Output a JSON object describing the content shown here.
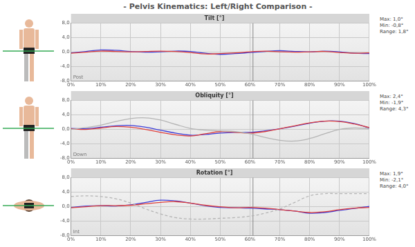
{
  "title": "- Pelvis Kinematics: Left/Right Comparison -",
  "chart_data": [
    {
      "type": "line",
      "title": "Tilt [°]",
      "annotation": "Post",
      "stats": [
        "Max: 1,0°",
        "Min: -0,8°",
        "Range: 1,8°"
      ],
      "x": [
        0,
        5,
        10,
        15,
        20,
        25,
        30,
        35,
        40,
        45,
        50,
        55,
        60,
        65,
        70,
        75,
        80,
        85,
        90,
        95,
        100
      ],
      "xlim": [
        0,
        100
      ],
      "xticks": [
        {
          "value": 0,
          "label": "0%"
        },
        {
          "value": 10,
          "label": "10%"
        },
        {
          "value": 20,
          "label": "20%"
        },
        {
          "value": 30,
          "label": "30%"
        },
        {
          "value": 40,
          "label": "40%"
        },
        {
          "value": 50,
          "label": "50%"
        },
        {
          "value": 60,
          "label": "60%"
        },
        {
          "value": 70,
          "label": "70%"
        },
        {
          "value": 80,
          "label": "80%"
        },
        {
          "value": 90,
          "label": "90%"
        },
        {
          "value": 100,
          "label": "100%"
        }
      ],
      "ylim": [
        -8,
        8
      ],
      "yticks": [
        {
          "value": -8,
          "label": "-8,0"
        },
        {
          "value": -4,
          "label": "-4,0"
        },
        {
          "value": 0,
          "label": "0,0"
        },
        {
          "value": 4,
          "label": "4,0"
        },
        {
          "value": 8,
          "label": "8,0"
        }
      ],
      "grid": true,
      "event_x": 61,
      "series": [
        {
          "color": "#e0403c",
          "line_style": "solid",
          "values": [
            -0.3,
            0,
            0.3,
            0.2,
            0.1,
            0.2,
            0.3,
            0.2,
            -0.1,
            -0.5,
            -0.4,
            -0.2,
            0.1,
            0.3,
            0.1,
            0,
            0.1,
            0.2,
            -0.1,
            -0.3,
            -0.2
          ]
        },
        {
          "color": "#3c3cd8",
          "line_style": "solid",
          "values": [
            -0.2,
            0.2,
            0.6,
            0.5,
            0.2,
            0,
            0.1,
            0.3,
            0.2,
            -0.3,
            -0.6,
            -0.4,
            -0.1,
            0.2,
            0.4,
            0.2,
            0.1,
            0.3,
            0.1,
            -0.3,
            -0.4
          ]
        }
      ]
    },
    {
      "type": "line",
      "title": "Obliquity [°]",
      "annotation": "Down",
      "stats": [
        "Max: 2,4°",
        "Min: -1,9°",
        "Range: 4,3°"
      ],
      "x": [
        0,
        5,
        10,
        15,
        20,
        25,
        30,
        35,
        40,
        45,
        50,
        55,
        60,
        65,
        70,
        75,
        80,
        85,
        90,
        95,
        100
      ],
      "xlim": [
        0,
        100
      ],
      "xticks": [
        {
          "value": 0,
          "label": "0%"
        },
        {
          "value": 10,
          "label": "10%"
        },
        {
          "value": 20,
          "label": "20%"
        },
        {
          "value": 30,
          "label": "30%"
        },
        {
          "value": 40,
          "label": "40%"
        },
        {
          "value": 50,
          "label": "50%"
        },
        {
          "value": 60,
          "label": "60%"
        },
        {
          "value": 70,
          "label": "70%"
        },
        {
          "value": 80,
          "label": "80%"
        },
        {
          "value": 90,
          "label": "90%"
        },
        {
          "value": 100,
          "label": "100%"
        }
      ],
      "ylim": [
        -8,
        8
      ],
      "yticks": [
        {
          "value": -8,
          "label": "-8,0"
        },
        {
          "value": -4,
          "label": "-4,0"
        },
        {
          "value": 0,
          "label": "0,0"
        },
        {
          "value": 4,
          "label": "4,0"
        },
        {
          "value": 8,
          "label": "8,0"
        }
      ],
      "grid": true,
      "event_x": 61,
      "series": [
        {
          "color": "#b4b4b4",
          "line_style": "solid",
          "values": [
            0,
            0.5,
            1.2,
            2.2,
            3.0,
            3.2,
            2.6,
            1.4,
            0.3,
            -0.2,
            -0.4,
            -0.6,
            -1.2,
            -2.2,
            -3.0,
            -3.2,
            -2.5,
            -1.2,
            0,
            0.4,
            0.2
          ]
        },
        {
          "color": "#e0403c",
          "line_style": "solid",
          "values": [
            0.2,
            0,
            0.4,
            0.8,
            0.6,
            0,
            -0.8,
            -1.5,
            -1.8,
            -1.2,
            -0.6,
            -0.8,
            -1,
            -0.6,
            0.2,
            1.0,
            1.8,
            2.3,
            2.2,
            1.5,
            0.5
          ]
        },
        {
          "color": "#3c3cd8",
          "line_style": "solid",
          "values": [
            0.3,
            0.2,
            0.6,
            1.0,
            1.1,
            0.6,
            -0.2,
            -1.0,
            -1.6,
            -1.4,
            -1.0,
            -0.8,
            -0.8,
            -0.4,
            0.2,
            0.9,
            1.7,
            2.3,
            2.3,
            1.6,
            0.4
          ]
        }
      ]
    },
    {
      "type": "line",
      "title": "Rotation [°]",
      "annotation": "Int",
      "stats": [
        "Max: 1,9°",
        "Min: -2,1°",
        "Range: 4,0°"
      ],
      "x": [
        0,
        5,
        10,
        15,
        20,
        25,
        30,
        35,
        40,
        45,
        50,
        55,
        60,
        65,
        70,
        75,
        80,
        85,
        90,
        95,
        100
      ],
      "xlim": [
        0,
        100
      ],
      "xticks": [
        {
          "value": 0,
          "label": "0%"
        },
        {
          "value": 10,
          "label": "10%"
        },
        {
          "value": 20,
          "label": "20%"
        },
        {
          "value": 30,
          "label": "30%"
        },
        {
          "value": 40,
          "label": "40%"
        },
        {
          "value": 50,
          "label": "50%"
        },
        {
          "value": 60,
          "label": "60%"
        },
        {
          "value": 70,
          "label": "70%"
        },
        {
          "value": 80,
          "label": "80%"
        },
        {
          "value": 90,
          "label": "90%"
        },
        {
          "value": 100,
          "label": "100%"
        }
      ],
      "ylim": [
        -8,
        8
      ],
      "yticks": [
        {
          "value": -8,
          "label": "-8,0"
        },
        {
          "value": -4,
          "label": "-4,0"
        },
        {
          "value": 0,
          "label": "0,0"
        },
        {
          "value": 4,
          "label": "4,0"
        },
        {
          "value": 8,
          "label": "8,0"
        }
      ],
      "grid": true,
      "event_x": 61,
      "series": [
        {
          "color": "#b4b4b4",
          "line_style": "dashed",
          "values": [
            2.8,
            3.0,
            2.8,
            2.2,
            1.0,
            -0.6,
            -2.0,
            -3.0,
            -3.4,
            -3.4,
            -3.2,
            -3.0,
            -2.6,
            -1.8,
            -0.6,
            1.2,
            3.0,
            3.6,
            3.6,
            3.6,
            3.6
          ]
        },
        {
          "color": "#e0403c",
          "line_style": "solid",
          "values": [
            -0.3,
            0,
            0.3,
            0.3,
            0.4,
            0.8,
            1.2,
            1.4,
            1.0,
            0.4,
            0,
            -0.3,
            -0.2,
            -0.4,
            -0.8,
            -1.2,
            -1.6,
            -1.4,
            -0.8,
            -0.4,
            -0.2
          ]
        },
        {
          "color": "#3c3cd8",
          "line_style": "solid",
          "values": [
            -0.2,
            0.2,
            0.3,
            0.2,
            0.5,
            1.2,
            1.8,
            1.6,
            1.0,
            0.3,
            -0.2,
            -0.3,
            -0.4,
            -0.6,
            -0.8,
            -1.2,
            -1.8,
            -1.6,
            -1.0,
            -0.5,
            0.1
          ]
        }
      ]
    }
  ]
}
